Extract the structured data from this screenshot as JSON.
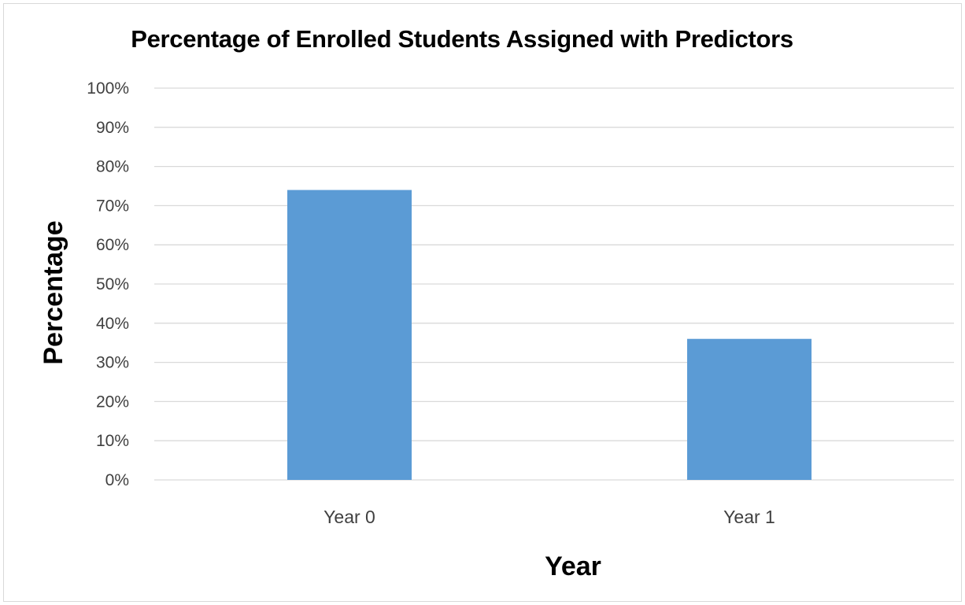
{
  "chart_data": {
    "type": "bar",
    "title": "Percentage of Enrolled Students Assigned with Predictors",
    "xlabel": "Year",
    "ylabel": "Percentage",
    "categories": [
      "Year 0",
      "Year 1"
    ],
    "values": [
      74,
      36
    ],
    "ylim": [
      0,
      100
    ],
    "y_ticks": [
      "0%",
      "10%",
      "20%",
      "30%",
      "40%",
      "50%",
      "60%",
      "70%",
      "80%",
      "90%",
      "100%"
    ],
    "grid": true,
    "legend": "none",
    "bar_color": "#5b9bd5",
    "grid_color": "#d9d9d9"
  }
}
